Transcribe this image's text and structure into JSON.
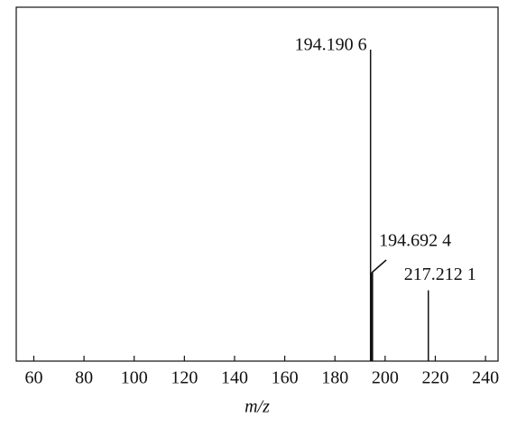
{
  "chart_data": {
    "type": "stem",
    "x_label": "m/z",
    "x": [
      194.1906,
      194.6924,
      217.2121
    ],
    "x_labels": [
      "194.190 6",
      "194.692 4",
      "217.212 1"
    ],
    "values": [
      88,
      25,
      20
    ],
    "color": "#111111",
    "xlim": [
      53,
      245
    ],
    "ylim": [
      0,
      100
    ],
    "xticks": [
      60,
      80,
      100,
      120,
      140,
      160,
      180,
      200,
      220,
      240
    ]
  }
}
